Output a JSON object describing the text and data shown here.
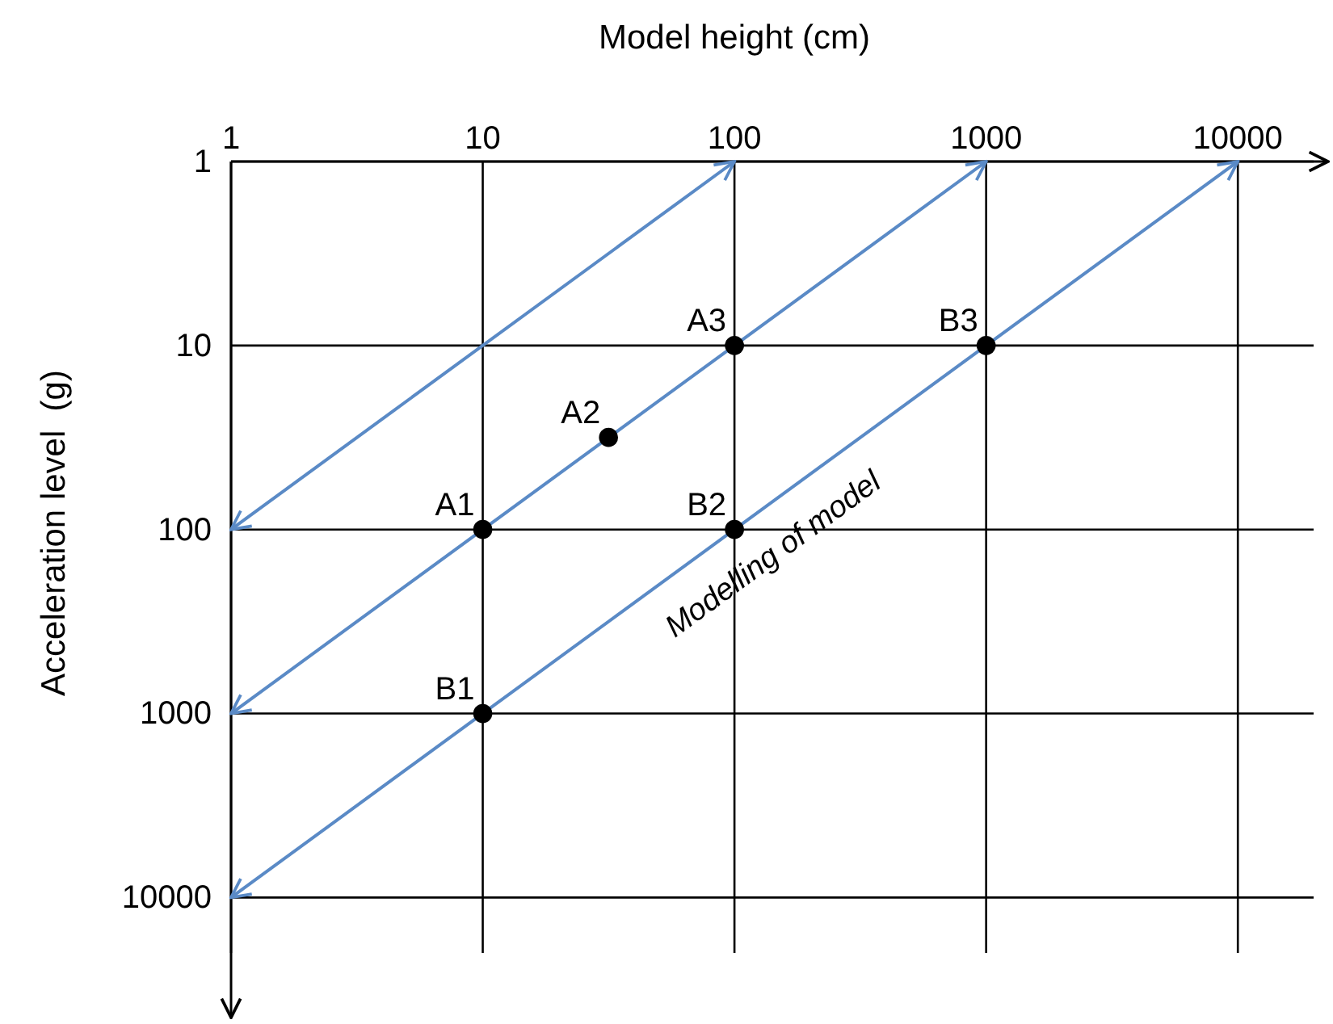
{
  "chart_data": {
    "type": "line",
    "xlabel": "Model height (cm)",
    "ylabel": "Acceleration level  (g)",
    "log": "xy",
    "xlim": [
      1,
      20000
    ],
    "ylim": [
      20000,
      1
    ],
    "xticks": [
      1,
      10,
      100,
      1000,
      10000
    ],
    "yticks": [
      1,
      10,
      100,
      1000,
      10000
    ],
    "grid": true,
    "line_style": "solid",
    "marker": "none",
    "series": [
      {
        "color": "#5a8ac6",
        "x": [
          100,
          1
        ],
        "values": [
          1,
          100
        ]
      },
      {
        "color": "#5a8ac6",
        "x": [
          1000,
          1
        ],
        "values": [
          1,
          1000
        ]
      },
      {
        "color": "#5a8ac6",
        "x": [
          10000,
          1
        ],
        "values": [
          1,
          10000
        ]
      },
      {
        "type": "scatter",
        "marker": "circle",
        "color": "#000000",
        "x": [
          10,
          31.6,
          100,
          10,
          100,
          1000
        ],
        "values": [
          100,
          31.6,
          10,
          1000,
          100,
          10
        ]
      }
    ],
    "annotations": [
      {
        "text": "A1",
        "x": 10,
        "y": 100
      },
      {
        "text": "A2",
        "x": 31.6,
        "y": 31.6
      },
      {
        "text": "A3",
        "x": 100,
        "y": 10
      },
      {
        "text": "B1",
        "x": 10,
        "y": 1000
      },
      {
        "text": "B2",
        "x": 100,
        "y": 100
      },
      {
        "text": "B3",
        "x": 1000,
        "y": 10
      },
      "Modelling of model"
    ]
  }
}
